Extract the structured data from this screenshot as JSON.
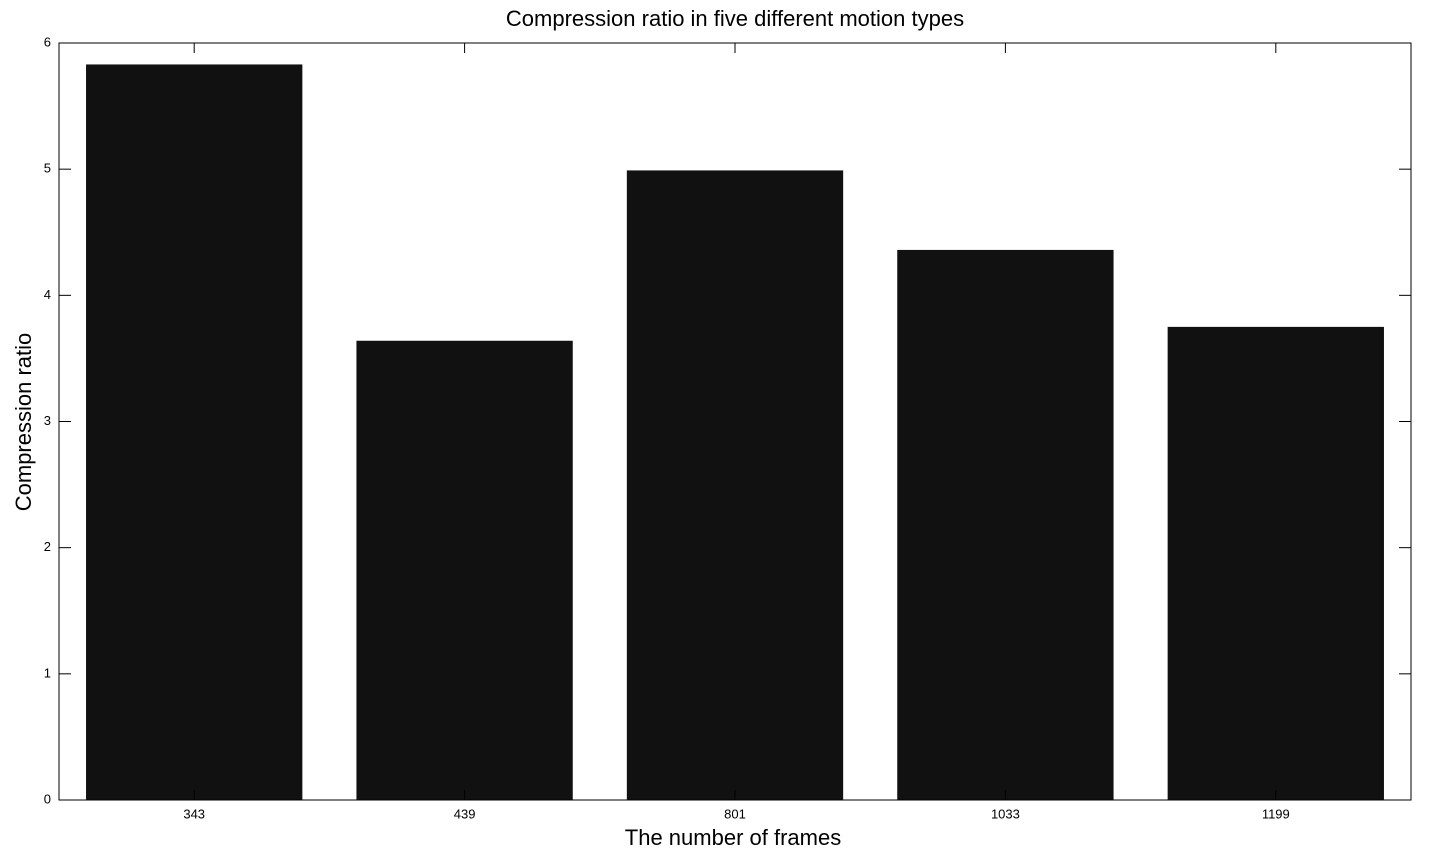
{
  "chart_data": {
    "type": "bar",
    "title": "Compression ratio in five different motion types",
    "x_label": "The number of frames",
    "y_label": "Compression ratio",
    "categories": [
      "343",
      "439",
      "801",
      "1033",
      "1199"
    ],
    "values": [
      5.83,
      3.64,
      4.99,
      4.36,
      3.75
    ],
    "color": "#111111",
    "ylim": [
      0,
      6
    ],
    "yticks": [
      0,
      1,
      2,
      3,
      4,
      5,
      6
    ],
    "grid": false
  }
}
